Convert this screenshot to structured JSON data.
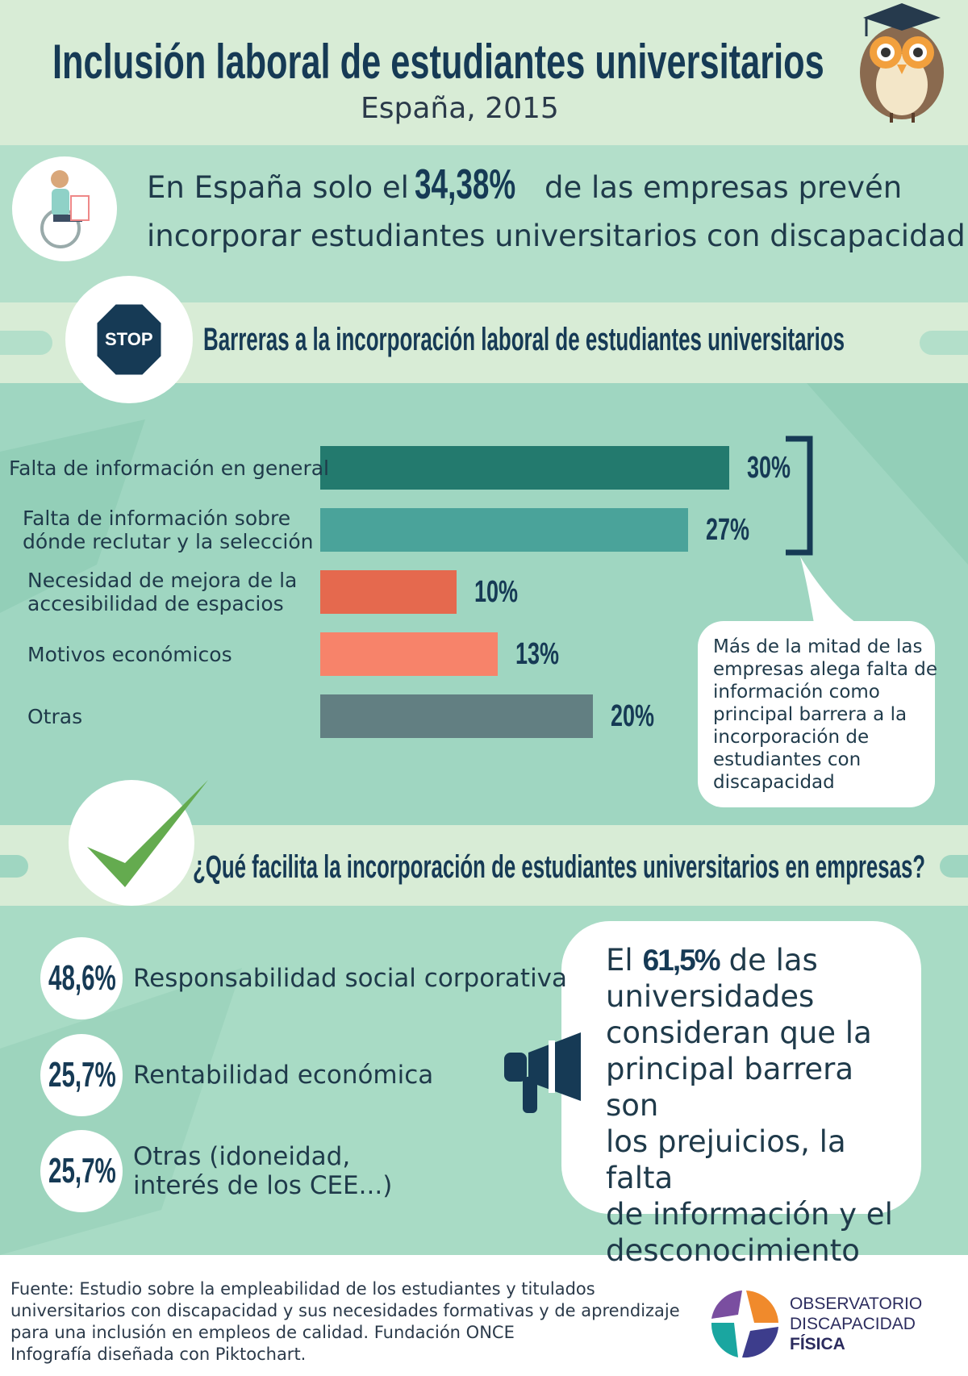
{
  "header": {
    "title": "Inclusión laboral de estudiantes universitarios",
    "subtitle": "España, 2015"
  },
  "highlight": {
    "before": "En España solo el",
    "value": "34,38%",
    "after": "de las empresas prevén",
    "line2": "incorporar estudiantes universitarios con discapacidad"
  },
  "barriers": {
    "stop_sign": "STOP",
    "title": "Barreras a la incorporación laboral de estudiantes universitarios",
    "note": "Más de la mitad de las\nempresas alega falta de\ninformación como\nprincipal barrera a la\nincorporación de\nestudiantes con\ndiscapacidad"
  },
  "chart_data": {
    "type": "bar",
    "categories": [
      "Falta de información en general",
      "Falta de información sobre\ndónde reclutar y la selección",
      "Necesidad de mejora de la\naccesibilidad de espacios",
      "Motivos económicos",
      "Otras"
    ],
    "values": [
      30,
      27,
      10,
      13,
      20
    ],
    "value_labels": [
      "30%",
      "27%",
      "10%",
      "13%",
      "20%"
    ],
    "colors": [
      "#237a6e",
      "#4aa39a",
      "#e5694e",
      "#f7836a",
      "#627f82"
    ]
  },
  "facilitators": {
    "title": "¿Qué facilita la incorporación de estudiantes universitarios en empresas?",
    "items": [
      {
        "value": "48,6%",
        "label": "Responsabilidad social corporativa"
      },
      {
        "value": "25,7%",
        "label": "Rentabilidad económica"
      },
      {
        "value": "25,7%",
        "label": "Otras (idoneidad,\ninterés de los CEE...)"
      }
    ]
  },
  "quote": {
    "before": "El",
    "value": "61,5%",
    "after": "de las\nuniversidades\nconsideran que la\nprincipal barrera son\nlos prejuicios, la falta\nde información y el\ndesconocimiento"
  },
  "footer": {
    "source": "Fuente: Estudio sobre la empleabilidad de los estudiantes y titulados\nuniversitarios con discapacidad y sus necesidades formativas y de aprendizaje\npara una inclusión en empleos de calidad. Fundación ONCE",
    "credit": "Infografía diseñada con Piktochart.",
    "logo": [
      "OBSERVATORIO",
      "DISCAPACIDAD",
      "FÍSICA"
    ]
  }
}
